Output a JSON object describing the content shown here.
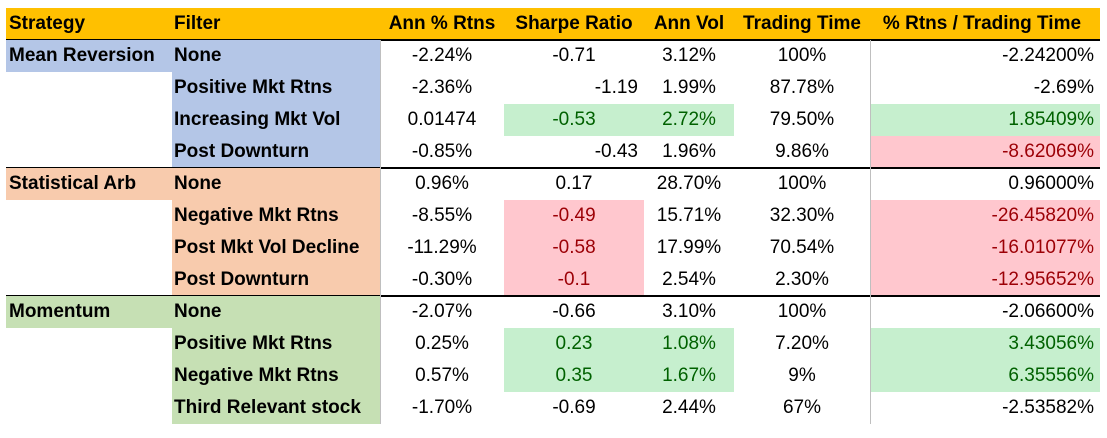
{
  "headers": [
    "Strategy",
    "Filter",
    "Ann % Rtns",
    "Sharpe Ratio",
    "Ann Vol",
    "Trading Time",
    "% Rtns / Trading Time"
  ],
  "colors": {
    "header": "#ffc000",
    "mean_reversion": "#b4c6e7",
    "statistical_arb": "#f8cbad",
    "momentum": "#c6e0b4",
    "good_fill": "#c6efce",
    "good_text": "#006100",
    "bad_fill": "#ffc7ce",
    "bad_text": "#9c0006"
  },
  "groups": [
    {
      "strategy": "Mean Reversion",
      "color_key": "mean_reversion",
      "rows": [
        {
          "filter": "None",
          "ann_rtns": "-2.24%",
          "sharpe": "-0.71",
          "sharpe_align": "center",
          "ann_vol": "3.12%",
          "trading_time": "100%",
          "rtns_per_time": "-2.24200%",
          "highlight": {}
        },
        {
          "filter": "Positive Mkt Rtns",
          "ann_rtns": "-2.36%",
          "sharpe": "-1.19",
          "sharpe_align": "right",
          "ann_vol": "1.99%",
          "trading_time": "87.78%",
          "rtns_per_time": "-2.69%",
          "highlight": {}
        },
        {
          "filter": "Increasing Mkt Vol",
          "ann_rtns": "0.01474",
          "sharpe": "-0.53",
          "sharpe_align": "center",
          "ann_vol": "2.72%",
          "trading_time": "79.50%",
          "rtns_per_time": "1.85409%",
          "highlight": {
            "sharpe": "green",
            "ann_vol": "green",
            "rtns_per_time": "green"
          }
        },
        {
          "filter": "Post Downturn",
          "ann_rtns": "-0.85%",
          "sharpe": "-0.43",
          "sharpe_align": "right",
          "ann_vol": "1.96%",
          "trading_time": "9.86%",
          "rtns_per_time": "-8.62069%",
          "highlight": {
            "rtns_per_time": "red"
          }
        }
      ]
    },
    {
      "strategy": "Statistical Arb",
      "color_key": "statistical_arb",
      "rows": [
        {
          "filter": "None",
          "ann_rtns": "0.96%",
          "sharpe": "0.17",
          "sharpe_align": "center",
          "ann_vol": "28.70%",
          "trading_time": "100%",
          "rtns_per_time": "0.96000%",
          "highlight": {}
        },
        {
          "filter": "Negative Mkt Rtns",
          "ann_rtns": "-8.55%",
          "sharpe": "-0.49",
          "sharpe_align": "center",
          "ann_vol": "15.71%",
          "trading_time": "32.30%",
          "rtns_per_time": "-26.45820%",
          "highlight": {
            "sharpe": "red",
            "rtns_per_time": "red"
          }
        },
        {
          "filter": "Post Mkt Vol Decline",
          "ann_rtns": "-11.29%",
          "sharpe": "-0.58",
          "sharpe_align": "center",
          "ann_vol": "17.99%",
          "trading_time": "70.54%",
          "rtns_per_time": "-16.01077%",
          "highlight": {
            "sharpe": "red",
            "rtns_per_time": "red"
          }
        },
        {
          "filter": "Post Downturn",
          "ann_rtns": "-0.30%",
          "sharpe": "-0.1",
          "sharpe_align": "center",
          "ann_vol": "2.54%",
          "trading_time": "2.30%",
          "rtns_per_time": "-12.95652%",
          "highlight": {
            "sharpe": "red",
            "rtns_per_time": "red"
          }
        }
      ]
    },
    {
      "strategy": "Momentum",
      "color_key": "momentum",
      "rows": [
        {
          "filter": "None",
          "ann_rtns": "-2.07%",
          "sharpe": "-0.66",
          "sharpe_align": "center",
          "ann_vol": "3.10%",
          "trading_time": "100%",
          "rtns_per_time": "-2.06600%",
          "highlight": {}
        },
        {
          "filter": "Positive Mkt Rtns",
          "ann_rtns": "0.25%",
          "sharpe": "0.23",
          "sharpe_align": "center",
          "ann_vol": "1.08%",
          "trading_time": "7.20%",
          "rtns_per_time": "3.43056%",
          "highlight": {
            "sharpe": "green",
            "ann_vol": "green",
            "rtns_per_time": "green"
          }
        },
        {
          "filter": "Negative Mkt Rtns",
          "ann_rtns": "0.57%",
          "sharpe": "0.35",
          "sharpe_align": "center",
          "ann_vol": "1.67%",
          "trading_time": "9%",
          "rtns_per_time": "6.35556%",
          "highlight": {
            "sharpe": "green",
            "ann_vol": "green",
            "rtns_per_time": "green"
          }
        },
        {
          "filter": "Third Relevant stock",
          "ann_rtns": "-1.70%",
          "sharpe": "-0.69",
          "sharpe_align": "center",
          "ann_vol": "2.44%",
          "trading_time": "67%",
          "rtns_per_time": "-2.53582%",
          "highlight": {}
        }
      ]
    }
  ]
}
